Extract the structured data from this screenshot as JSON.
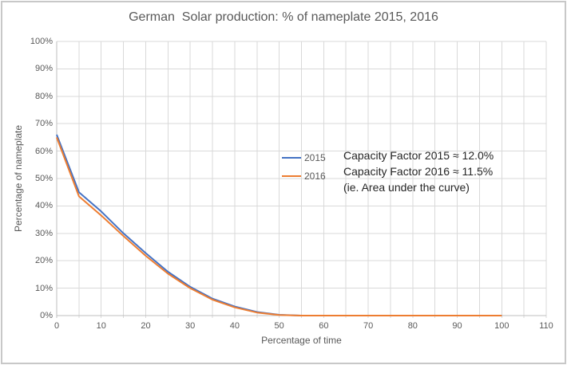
{
  "window": {
    "background": "#FFFFFF",
    "border_color": "#C8C8C8"
  },
  "chart_data": {
    "type": "line",
    "title": "German  Solar production: % of nameplate 2015, 2016",
    "xlabel": "Percentage of time",
    "ylabel": "Percentage of nameplate",
    "xlim": [
      0,
      110
    ],
    "ylim": [
      0,
      100
    ],
    "x_tick_labels": [
      "0",
      "10",
      "20",
      "30",
      "40",
      "50",
      "60",
      "70",
      "80",
      "90",
      "100",
      "110"
    ],
    "y_tick_labels": [
      "0%",
      "10%",
      "20%",
      "30%",
      "40%",
      "50%",
      "60%",
      "70%",
      "80%",
      "90%",
      "100%"
    ],
    "grid": {
      "x_step": 5,
      "y_step": 10,
      "color": "#D9D9D9",
      "axis_color": "#BFBFBF",
      "grid_on": true
    },
    "legend_position": "inside-center-right",
    "x": [
      0,
      5,
      10,
      15,
      20,
      25,
      30,
      35,
      40,
      45,
      50,
      55,
      60,
      65,
      70,
      75,
      80,
      85,
      90,
      95,
      100
    ],
    "series": [
      {
        "name": "2015",
        "color": "#4472C4",
        "values": [
          66,
          45,
          38,
          30,
          22.8,
          16,
          10.5,
          6.2,
          3.3,
          1.3,
          0.3,
          0,
          0,
          0,
          0,
          0,
          0,
          0,
          0,
          0,
          0
        ]
      },
      {
        "name": "2016",
        "color": "#ED7D31",
        "values": [
          65,
          43.5,
          36.5,
          29,
          21.8,
          15.3,
          10,
          5.8,
          3,
          1.1,
          0.2,
          0,
          0,
          0,
          0,
          0,
          0,
          0,
          0,
          0,
          0
        ]
      }
    ],
    "annotation": {
      "lines": [
        "Capacity Factor 2015 ≈ 12.0%",
        "Capacity Factor 2016 ≈ 11.5%",
        "(ie. Area under the curve)"
      ]
    }
  },
  "text_color": "#595959",
  "annotation_color": "#262626"
}
